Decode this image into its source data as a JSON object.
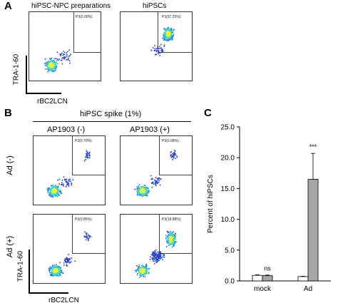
{
  "panels": {
    "A": "A",
    "B": "B",
    "C": "C"
  },
  "panelA": {
    "plot1_title": "hiPSC-NPC preparations",
    "plot2_title": "hiPSCs",
    "gate1": "P3(0.00%)",
    "gate2": "P3(97.25%)",
    "y_axis": "TRA-1-60",
    "x_axis": "rBC2LCN"
  },
  "panelB": {
    "spike_title": "hiPSC spike (1%)",
    "col1": "AP1903 (-)",
    "col2": "AP1903 (+)",
    "row1": "Ad (-)",
    "row2": "Ad (+)",
    "gates": [
      "P3(0.70%)",
      "P3(0.68%)",
      "P3(0.85%)",
      "P3(18.88%)"
    ],
    "y_axis": "TRA-1-60",
    "x_axis": "rBC2LCN"
  },
  "chart_data": {
    "type": "bar",
    "categories": [
      "mock",
      "Ad"
    ],
    "series": [
      {
        "values": [
          0.9,
          0.7
        ],
        "errors": [
          0.1,
          0.05
        ],
        "color": "#ffffff"
      },
      {
        "values": [
          0.85,
          16.5
        ],
        "errors": [
          0.1,
          4.2
        ],
        "color": "#a6a6a6"
      }
    ],
    "ylabel": "Percent of hiPSCs",
    "ylim": [
      0,
      25
    ],
    "yticks": [
      "0.0",
      "5.0",
      "10.0",
      "15.0",
      "20.0",
      "25.0"
    ],
    "annotations": [
      {
        "category": "mock",
        "text": "ns"
      },
      {
        "category": "Ad",
        "text": "***"
      }
    ]
  }
}
